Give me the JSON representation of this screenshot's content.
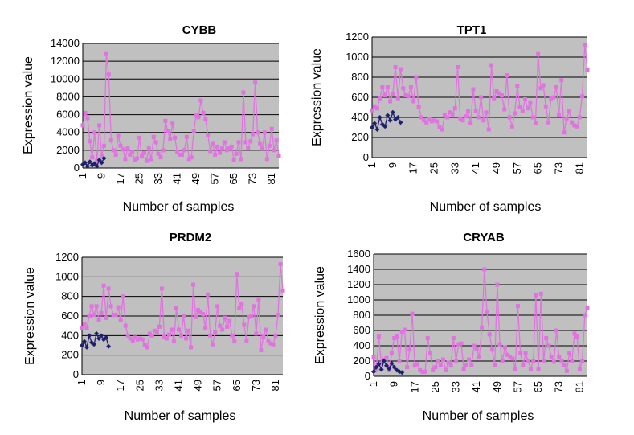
{
  "chart_data": [
    {
      "type": "line",
      "title": "CYBB",
      "xlabel": "Number of samples",
      "ylabel": "Expression value",
      "ylim": [
        0,
        14000
      ],
      "yticks": [
        0,
        2000,
        4000,
        6000,
        8000,
        10000,
        12000,
        14000
      ],
      "xticks": [
        1,
        9,
        17,
        25,
        33,
        41,
        49,
        57,
        65,
        73,
        81
      ],
      "xlim": [
        1,
        84
      ],
      "grid": true,
      "legend": "none",
      "colors": {
        "plot_bg": "#c0c0c0",
        "grid": "#000000",
        "series_a": "#1f1f6e",
        "series_b": "#e173e1"
      },
      "series": [
        {
          "start": 1,
          "values": [
            400,
            600,
            200,
            700,
            300,
            500,
            200,
            900,
            600,
            1100
          ]
        },
        {
          "start": 1,
          "values": [
            4800,
            6200,
            5600,
            3000,
            1200,
            4000,
            800,
            4800,
            1400,
            2500,
            12800,
            10500,
            3100,
            2000,
            1500,
            3600,
            2500,
            2100,
            1000,
            2200,
            1500,
            1800,
            900,
            1100,
            3400,
            1300,
            1700,
            800,
            2200,
            1000,
            3500,
            2900,
            1600,
            1200,
            2000,
            5300,
            4100,
            3300,
            5000,
            3400,
            1800,
            1500,
            1500,
            2000,
            3500,
            1000,
            1200,
            4100,
            6000,
            5700,
            7600,
            6200,
            5500,
            3700,
            1900,
            2800,
            1500,
            2400,
            1700,
            2200,
            2900,
            2000,
            2200,
            2400,
            900,
            1600,
            2900,
            1000,
            8500,
            2900,
            2300,
            3000,
            3800,
            9600,
            4000,
            2800,
            2200,
            4000,
            1000,
            2500,
            4400,
            2000,
            3100,
            1400
          ]
        }
      ]
    },
    {
      "type": "line",
      "title": "TPT1",
      "xlabel": "Number of samples",
      "ylabel": "Expression value",
      "ylim": [
        0,
        1200
      ],
      "yticks": [
        0,
        200,
        400,
        600,
        800,
        1000,
        1200
      ],
      "xticks": [
        1,
        9,
        17,
        25,
        33,
        41,
        49,
        57,
        65,
        73,
        81
      ],
      "xlim": [
        1,
        84
      ],
      "grid": true,
      "legend": "none",
      "colors": {
        "plot_bg": "#c0c0c0",
        "grid": "#000000",
        "series_a": "#1f1f6e",
        "series_b": "#e173e1"
      },
      "series": [
        {
          "start": 1,
          "values": [
            300,
            340,
            280,
            400,
            330,
            310,
            420,
            370,
            450,
            380,
            400,
            350
          ]
        },
        {
          "start": 1,
          "values": [
            470,
            510,
            490,
            590,
            700,
            620,
            700,
            560,
            630,
            900,
            590,
            880,
            690,
            620,
            610,
            700,
            560,
            800,
            500,
            400,
            370,
            350,
            380,
            360,
            370,
            360,
            300,
            280,
            420,
            400,
            450,
            430,
            490,
            900,
            390,
            370,
            410,
            460,
            340,
            680,
            460,
            400,
            600,
            370,
            450,
            280,
            920,
            590,
            660,
            640,
            620,
            480,
            820,
            400,
            310,
            440,
            710,
            500,
            460,
            580,
            490,
            550,
            400,
            340,
            1030,
            690,
            720,
            510,
            350,
            590,
            600,
            700,
            420,
            770,
            250,
            390,
            460,
            350,
            320,
            310,
            400,
            610,
            1120,
            870
          ]
        }
      ]
    },
    {
      "type": "line",
      "title": "PRDM2",
      "xlabel": "Number of samples",
      "ylabel": "Expression value",
      "ylim": [
        0,
        1200
      ],
      "yticks": [
        0,
        200,
        400,
        600,
        800,
        1000,
        1200
      ],
      "xticks": [
        1,
        9,
        17,
        25,
        33,
        41,
        49,
        57,
        65,
        73,
        81
      ],
      "xlim": [
        1,
        84
      ],
      "grid": true,
      "legend": "none",
      "colors": {
        "plot_bg": "#c0c0c0",
        "grid": "#000000",
        "series_a": "#1f1f6e",
        "series_b": "#e173e1"
      },
      "series": [
        {
          "start": 1,
          "values": [
            300,
            340,
            280,
            400,
            330,
            310,
            420,
            370,
            400,
            360,
            380,
            290
          ]
        },
        {
          "start": 1,
          "values": [
            480,
            520,
            480,
            600,
            700,
            610,
            700,
            560,
            630,
            910,
            580,
            880,
            700,
            610,
            610,
            690,
            560,
            800,
            500,
            400,
            370,
            350,
            380,
            360,
            370,
            360,
            300,
            280,
            420,
            400,
            450,
            430,
            490,
            880,
            390,
            370,
            410,
            460,
            340,
            680,
            460,
            400,
            600,
            370,
            450,
            280,
            920,
            590,
            660,
            640,
            620,
            480,
            820,
            400,
            310,
            440,
            700,
            500,
            460,
            580,
            490,
            550,
            400,
            340,
            1030,
            680,
            720,
            510,
            350,
            590,
            600,
            700,
            420,
            770,
            250,
            390,
            460,
            350,
            320,
            310,
            400,
            610,
            1130,
            860
          ]
        }
      ]
    },
    {
      "type": "line",
      "title": "CRYAB",
      "xlabel": "Number of samples",
      "ylabel": "Expression value",
      "ylim": [
        0,
        1600
      ],
      "yticks": [
        0,
        200,
        400,
        600,
        800,
        1000,
        1200,
        1400,
        1600
      ],
      "xticks": [
        1,
        9,
        17,
        25,
        33,
        41,
        49,
        57,
        65,
        73,
        81
      ],
      "xlim": [
        1,
        84
      ],
      "grid": true,
      "legend": "none",
      "colors": {
        "plot_bg": "#c0c0c0",
        "grid": "#000000",
        "series_a": "#1f1f6e",
        "series_b": "#e173e1"
      },
      "series": [
        {
          "start": 1,
          "values": [
            60,
            120,
            160,
            90,
            200,
            140,
            100,
            170,
            120,
            80,
            60,
            50
          ]
        },
        {
          "start": 1,
          "values": [
            250,
            80,
            520,
            160,
            220,
            240,
            80,
            300,
            500,
            520,
            200,
            580,
            610,
            120,
            350,
            820,
            140,
            160,
            80,
            60,
            60,
            500,
            300,
            80,
            120,
            200,
            150,
            220,
            80,
            180,
            140,
            500,
            200,
            420,
            430,
            100,
            150,
            220,
            150,
            400,
            360,
            250,
            640,
            1400,
            840,
            550,
            350,
            150,
            1200,
            420,
            200,
            380,
            280,
            250,
            230,
            100,
            920,
            300,
            150,
            300,
            200,
            100,
            200,
            1060,
            100,
            1080,
            200,
            500,
            400,
            250,
            190,
            600,
            250,
            200,
            150,
            70,
            300,
            200,
            560,
            520,
            100,
            200,
            800,
            900
          ]
        }
      ]
    }
  ]
}
